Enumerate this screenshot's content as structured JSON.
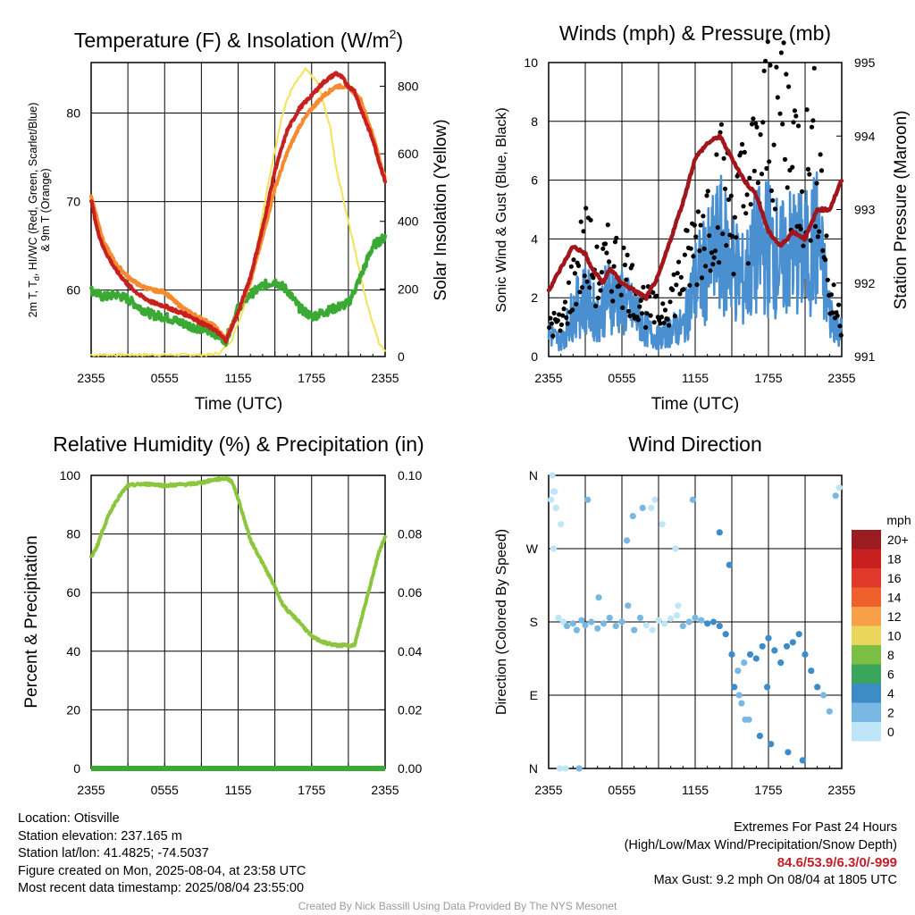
{
  "colors": {
    "temp_2m": "#c8201e",
    "dewpoint": "#3aaa35",
    "wind_chill": "#c8201e",
    "temp_9m": "#f68a2e",
    "insolation": "#f2e35a",
    "wind_speed": "#4a90d0",
    "wind_gust": "#000000",
    "pressure": "#a0161c",
    "humidity": "#8cc63f",
    "precip": "#3aaa35",
    "extremes": "#c0202a",
    "credit": "#9a9a9a"
  },
  "panels": {
    "temperature": {
      "title": "Temperature (F) & Insolation (W/m",
      "title_sup": "2",
      "title_close": ")",
      "left_label_line1": "2m T, T",
      "left_label_sub": "d",
      "left_label_line1_rest": ", HI/WC (Red, Green, Scarlet/Blue)",
      "left_label_line2": "& 9m T (Orange)",
      "right_label": "Solar Insolation (Yellow)",
      "xlabel": "Time (UTC)"
    },
    "winds": {
      "title": "Winds (mph) & Pressure (mb)",
      "left_label": "Sonic Wind & Gust (Blue, Black)",
      "right_label": "Station Pressure (Maroon)",
      "xlabel": "Time (UTC)"
    },
    "humidity": {
      "title": "Relative Humidity (%) & Precipitation (in)",
      "left_label": "Percent & Precipitation"
    },
    "direction": {
      "title": "Wind Direction",
      "left_label": "Direction (Colored By Speed)",
      "legend_title": "mph",
      "legend_labels": [
        "20+",
        "18",
        "16",
        "14",
        "12",
        "10",
        "8",
        "6",
        "4",
        "2",
        "0"
      ],
      "legend_colors": [
        "#9b1c20",
        "#c8201e",
        "#e0392b",
        "#f0602d",
        "#f6a04a",
        "#ead65a",
        "#7cbf45",
        "#3ca55c",
        "#3d8cc8",
        "#7ab8e4",
        "#bfe5f8"
      ]
    }
  },
  "chart_data": [
    {
      "type": "line",
      "title": "Temperature (F) & Insolation (W/m2)",
      "xlabel": "Time (UTC)",
      "ylabel": "2m T, Td, HI/WC (Red, Green, Scarlet/Blue) & 9m T (Orange)",
      "y2label": "Solar Insolation (Yellow)",
      "x_ticks": [
        "2355",
        "0555",
        "1155",
        "1755",
        "2355"
      ],
      "xlim": [
        0,
        24
      ],
      "ylim": [
        52.5,
        85.7
      ],
      "y_ticks": [
        60,
        70,
        80
      ],
      "y2lim": [
        0,
        870
      ],
      "y2_ticks": [
        0,
        200,
        400,
        600,
        800
      ],
      "grid": true,
      "series": [
        {
          "name": "2m T",
          "axis": "left",
          "x": [
            0,
            0.5,
            1,
            1.5,
            2,
            3,
            4,
            5,
            6,
            7,
            8,
            9,
            10,
            10.5,
            11,
            12,
            13,
            14,
            15,
            16,
            17,
            18,
            19,
            20,
            20.5,
            21,
            21.5,
            22,
            23,
            23.5,
            24
          ],
          "values": [
            70.2,
            66.8,
            64.8,
            63.5,
            62.3,
            60.6,
            59.4,
            58.6,
            58.2,
            57.6,
            57.1,
            56.3,
            55.6,
            55.0,
            54.3,
            57.5,
            61.5,
            67.0,
            73.5,
            78.0,
            80.5,
            82.0,
            83.5,
            84.5,
            84.0,
            83.0,
            82.5,
            80.5,
            77.0,
            74.5,
            72.3
          ]
        },
        {
          "name": "Dewpoint",
          "axis": "left",
          "x": [
            0,
            1,
            2,
            3,
            4,
            5,
            6,
            7,
            8,
            9,
            10,
            11,
            12,
            13,
            14,
            15,
            16,
            17,
            18,
            19,
            20,
            21,
            22,
            23,
            24
          ],
          "values": [
            60.0,
            59.2,
            59.5,
            59.0,
            58.0,
            57.2,
            57.0,
            56.5,
            56.0,
            55.6,
            55.2,
            54.3,
            58.0,
            59.5,
            60.5,
            61.0,
            60.0,
            58.0,
            57.0,
            57.5,
            58.0,
            58.5,
            61.5,
            65.0,
            66.0
          ]
        },
        {
          "name": "9m T",
          "axis": "left",
          "x": [
            0,
            1,
            2,
            3,
            4,
            5,
            6,
            7,
            8,
            9,
            10,
            11,
            12,
            13,
            14,
            15,
            16,
            17,
            18,
            19,
            20,
            21,
            22,
            23,
            24
          ],
          "values": [
            70.6,
            65.5,
            63.0,
            61.5,
            60.5,
            60.0,
            59.8,
            58.5,
            57.5,
            56.8,
            56.0,
            54.5,
            57.5,
            61.0,
            66.0,
            71.5,
            75.5,
            78.5,
            80.5,
            82.0,
            83.0,
            83.0,
            81.5,
            77.5,
            72.5
          ]
        },
        {
          "name": "Insolation",
          "axis": "right",
          "x": [
            0,
            9.5,
            10.5,
            11.5,
            12.5,
            13.5,
            14.5,
            15.5,
            16.0,
            16.5,
            17.5,
            18.5,
            19.5,
            20.0,
            21.5,
            22.5,
            23.5,
            24
          ],
          "values": [
            5,
            5,
            10,
            50,
            150,
            320,
            520,
            700,
            760,
            800,
            850,
            810,
            680,
            560,
            320,
            160,
            40,
            20
          ]
        }
      ]
    },
    {
      "type": "line",
      "title": "Winds (mph) & Pressure (mb)",
      "xlabel": "Time (UTC)",
      "ylabel": "Sonic Wind & Gust (Blue, Black)",
      "y2label": "Station Pressure (Maroon)",
      "x_ticks": [
        "2355",
        "0555",
        "1155",
        "1755",
        "2355"
      ],
      "xlim": [
        0,
        24
      ],
      "ylim": [
        0,
        10
      ],
      "y_ticks": [
        0,
        2,
        4,
        6,
        8,
        10
      ],
      "y2lim": [
        991,
        995
      ],
      "y2_ticks": [
        991,
        992,
        993,
        994,
        995
      ],
      "grid": true,
      "series": [
        {
          "name": "Sonic Wind",
          "axis": "left",
          "x": [
            0,
            1,
            2,
            3,
            4,
            5,
            6,
            7,
            8,
            9,
            10,
            11,
            12,
            13,
            14,
            15,
            16,
            17,
            18,
            19,
            20,
            21,
            22,
            23,
            24
          ],
          "values": [
            0.8,
            0.5,
            1.5,
            2.0,
            1.3,
            2.2,
            1.8,
            1.5,
            0.9,
            0.6,
            0.9,
            1.0,
            2.5,
            3.0,
            3.8,
            3.2,
            2.5,
            3.5,
            3.8,
            3.2,
            3.6,
            3.4,
            4.0,
            1.5,
            0.8
          ]
        },
        {
          "name": "Gust",
          "axis": "left",
          "x": [
            0,
            1,
            2,
            3,
            4,
            5,
            6,
            7,
            8,
            9,
            10,
            11,
            12,
            13,
            14,
            15,
            16,
            17,
            18,
            19,
            20,
            21,
            22,
            23,
            24
          ],
          "values": [
            1.2,
            1.0,
            2.5,
            3.8,
            2.6,
            3.2,
            3.0,
            2.2,
            1.7,
            1.4,
            2.0,
            2.8,
            3.8,
            4.8,
            5.8,
            4.8,
            5.4,
            6.2,
            8.0,
            8.8,
            7.0,
            6.0,
            7.2,
            2.0,
            1.2
          ]
        },
        {
          "name": "Pressure",
          "axis": "right",
          "x": [
            0,
            1,
            2,
            3,
            3.5,
            4,
            4.5,
            5,
            6,
            7,
            8,
            9,
            10,
            11,
            12,
            13,
            14,
            15,
            16,
            17,
            18,
            19,
            20,
            21,
            22,
            23,
            24
          ],
          "values": [
            991.9,
            992.2,
            992.5,
            992.4,
            992.2,
            992.1,
            992.0,
            992.2,
            992.0,
            991.9,
            991.8,
            992.1,
            992.6,
            993.1,
            993.7,
            993.9,
            994.0,
            993.7,
            993.4,
            993.2,
            992.7,
            992.5,
            992.7,
            992.6,
            993.0,
            993.0,
            993.4
          ]
        }
      ]
    },
    {
      "type": "line",
      "title": "Relative Humidity (%) & Precipitation (in)",
      "xlabel": "",
      "ylabel": "Percent & Precipitation",
      "x_ticks": [
        "2355",
        "0555",
        "1155",
        "1755",
        "2355"
      ],
      "xlim": [
        0,
        24
      ],
      "ylim": [
        0,
        100
      ],
      "y_ticks": [
        0,
        20,
        40,
        60,
        80,
        100
      ],
      "y2lim": [
        0,
        0.1
      ],
      "y2_ticks": [
        "0.00",
        "0.02",
        "0.04",
        "0.06",
        "0.08",
        "0.10"
      ],
      "grid": true,
      "series": [
        {
          "name": "Relative Humidity",
          "axis": "left",
          "x": [
            0,
            0.5,
            1,
            1.5,
            2,
            2.5,
            3,
            4,
            5,
            6,
            7,
            8,
            9,
            10,
            11,
            11.5,
            12,
            12.5,
            13,
            14,
            15,
            15.5,
            16,
            17,
            18,
            19,
            20,
            21,
            21.5,
            22,
            22.5,
            23,
            23.5,
            24
          ],
          "values": [
            72,
            76,
            82,
            87,
            91,
            94,
            96.5,
            97,
            97,
            96.5,
            96.8,
            97,
            97.5,
            98.5,
            99,
            98,
            92,
            85,
            78,
            70,
            62,
            57,
            54,
            50,
            45,
            43,
            42,
            42,
            42,
            50,
            58,
            66,
            74,
            79
          ]
        },
        {
          "name": "Precipitation",
          "axis": "right",
          "x": [
            0,
            24
          ],
          "values": [
            0,
            0
          ]
        }
      ]
    },
    {
      "type": "scatter",
      "title": "Wind Direction",
      "xlabel": "",
      "ylabel": "Direction (Colored By Speed)",
      "x_ticks": [
        "2355",
        "0555",
        "1155",
        "1755",
        "2355"
      ],
      "xlim": [
        0,
        24
      ],
      "ylim": [
        0,
        360
      ],
      "y_ticks": [
        "N",
        "E",
        "S",
        "W",
        "N"
      ],
      "y_tick_values": [
        0,
        90,
        180,
        270,
        360
      ],
      "colorbar_title": "mph",
      "series": [
        {
          "name": "Direction",
          "x": [
            0.2,
            0.4,
            0.6,
            0.8,
            1.2,
            1.5,
            2.0,
            2.3,
            2.7,
            3.0,
            3.5,
            4.0,
            4.5,
            5.0,
            5.5,
            6.0,
            6.5,
            7.0,
            7.5,
            8.0,
            8.5,
            9.0,
            9.5,
            10.0,
            10.5,
            11.0,
            11.5,
            12.0,
            12.5,
            13.0,
            13.5,
            14.0,
            14.5,
            15.0,
            15.5,
            16.0,
            16.5,
            17.0,
            17.5,
            18.0,
            18.5,
            19.0,
            19.5,
            20.0,
            20.5,
            21.0,
            21.5,
            22.0,
            22.5,
            23.0,
            23.5,
            23.8,
            0.3,
            0.9,
            1.4,
            2.5,
            6.9,
            8.4,
            9.3,
            0.5,
            3.2,
            6.4,
            7.7,
            8.7,
            10.4,
            11.8,
            14.0,
            15.2,
            15.8,
            16.4,
            17.3,
            18.2,
            19.6,
            20.8,
            0.4,
            1.0,
            4.1,
            10.6,
            14.8,
            15.6,
            16.1,
            17.9
          ],
          "values": [
            330,
            340,
            320,
            185,
            180,
            175,
            178,
            170,
            182,
            176,
            180,
            172,
            178,
            185,
            175,
            180,
            200,
            170,
            185,
            176,
            170,
            182,
            178,
            184,
            188,
            175,
            180,
            185,
            182,
            178,
            180,
            175,
            165,
            140,
            120,
            130,
            140,
            135,
            150,
            160,
            145,
            130,
            150,
            155,
            165,
            140,
            120,
            100,
            90,
            70,
            335,
            345,
            360,
            0,
            0,
            0,
            310,
            320,
            300,
            340,
            330,
            280,
            320,
            330,
            270,
            330,
            290,
            100,
            80,
            60,
            40,
            30,
            20,
            10,
            270,
            300,
            210,
            200,
            250,
            90,
            60,
            100
          ]
        }
      ]
    }
  ],
  "info": {
    "location": "Location: Otisville",
    "elevation": "Station elevation: 237.165 m",
    "latlon": "Station lat/lon: 41.4825; -74.5037",
    "created": "Figure created on Mon, 2025-08-04, at 23:58 UTC",
    "recent": "Most recent data timestamp: 2025/08/04 23:55:00"
  },
  "extremes": {
    "title": "Extremes For Past 24 Hours",
    "subtitle": "(High/Low/Max Wind/Precipitation/Snow Depth)",
    "values": "84.6/53.9/6.3/0/-999",
    "max_gust": "Max Gust: 9.2 mph On 08/04 at 1805 UTC"
  },
  "credit": "Created By Nick Bassill Using Data Provided By The NYS Mesonet"
}
